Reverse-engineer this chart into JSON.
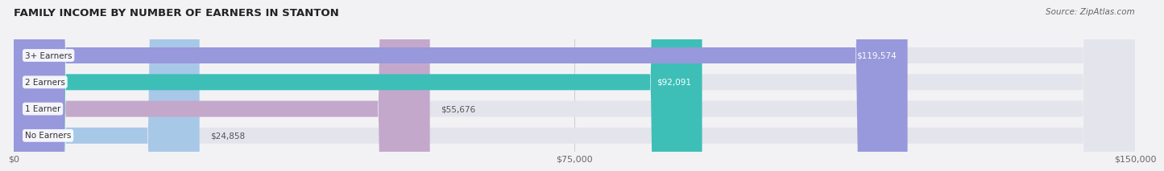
{
  "title": "FAMILY INCOME BY NUMBER OF EARNERS IN STANTON",
  "source": "Source: ZipAtlas.com",
  "categories": [
    "No Earners",
    "1 Earner",
    "2 Earners",
    "3+ Earners"
  ],
  "values": [
    24858,
    55676,
    92091,
    119574
  ],
  "bar_colors": [
    "#a8c8e8",
    "#c4a8cc",
    "#3dbfb8",
    "#9898dc"
  ],
  "bar_bg_color": "#e4e4ec",
  "value_labels": [
    "$24,858",
    "$55,676",
    "$92,091",
    "$119,574"
  ],
  "xlim": [
    0,
    150000
  ],
  "xticks": [
    0,
    75000,
    150000
  ],
  "xtick_labels": [
    "$0",
    "$75,000",
    "$150,000"
  ],
  "bar_height": 0.6,
  "background_color": "#f2f2f5",
  "value_inside_threshold": 60000
}
